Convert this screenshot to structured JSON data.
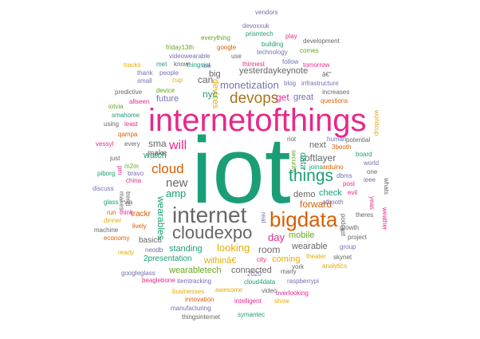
{
  "palette": {
    "teal": "#1b9e77",
    "magenta": "#e7298a",
    "orange": "#d95f02",
    "gold": "#a6761d",
    "gray": "#666666",
    "green": "#66a61e",
    "purple": "#7570b3",
    "yellow": "#e6ab02"
  },
  "words": [
    {
      "text": "iot",
      "color": "teal"
    },
    {
      "text": "internetofthings",
      "color": "magenta"
    },
    {
      "text": "internet",
      "color": "gray"
    },
    {
      "text": "cloudexpo",
      "color": "gray"
    },
    {
      "text": "bigdata",
      "color": "orange"
    },
    {
      "text": "things",
      "color": "teal"
    },
    {
      "text": "devops",
      "color": "gold"
    },
    {
      "text": "cloud",
      "color": "orange"
    },
    {
      "text": "will",
      "color": "magenta"
    },
    {
      "text": "monetization",
      "color": "purple"
    },
    {
      "text": "new",
      "color": "gray"
    },
    {
      "text": "amp",
      "color": "teal"
    },
    {
      "text": "wearables",
      "color": "teal"
    },
    {
      "text": "sma",
      "color": "gray"
    },
    {
      "text": "yesterdaykeynote",
      "color": "gray"
    },
    {
      "text": "can",
      "color": "gray"
    },
    {
      "text": "big",
      "color": "gray"
    },
    {
      "text": "devices",
      "color": "yellow"
    },
    {
      "text": "nyc",
      "color": "teal"
    },
    {
      "text": "get",
      "color": "magenta"
    },
    {
      "text": "great",
      "color": "purple"
    },
    {
      "text": "future",
      "color": "purple"
    },
    {
      "text": "looking",
      "color": "yellow"
    },
    {
      "text": "standing",
      "color": "teal"
    },
    {
      "text": "day",
      "color": "magenta"
    },
    {
      "text": "room",
      "color": "gray"
    },
    {
      "text": "mobile",
      "color": "green"
    },
    {
      "text": "forward",
      "color": "orange"
    },
    {
      "text": "softlayer",
      "color": "gray"
    },
    {
      "text": "next",
      "color": "gray"
    },
    {
      "text": "data",
      "color": "teal"
    },
    {
      "text": "demo",
      "color": "gray"
    },
    {
      "text": "check",
      "color": "teal"
    },
    {
      "text": "watch",
      "color": "teal"
    },
    {
      "text": "coming",
      "color": "yellow"
    },
    {
      "text": "wearable",
      "color": "gray"
    },
    {
      "text": "wearabletech",
      "color": "green"
    },
    {
      "text": "connected",
      "color": "gray"
    },
    {
      "text": "withinâ€",
      "color": "yellow"
    },
    {
      "text": "2presentation",
      "color": "teal"
    },
    {
      "text": "basic6",
      "color": "gray"
    },
    {
      "text": "trackr",
      "color": "orange"
    },
    {
      "text": "make",
      "color": "gray"
    },
    {
      "text": "vendors",
      "color": "purple"
    },
    {
      "text": "devoxxuk",
      "color": "purple"
    },
    {
      "text": "prismtech",
      "color": "teal"
    },
    {
      "text": "play",
      "color": "magenta"
    },
    {
      "text": "everything",
      "color": "green"
    },
    {
      "text": "building",
      "color": "teal"
    },
    {
      "text": "development",
      "color": "gray"
    },
    {
      "text": "friday13th",
      "color": "green"
    },
    {
      "text": "google",
      "color": "orange"
    },
    {
      "text": "technology",
      "color": "purple"
    },
    {
      "text": "comes",
      "color": "green"
    },
    {
      "text": "videowearable",
      "color": "purple"
    },
    {
      "text": "use",
      "color": "gray"
    },
    {
      "text": "follow",
      "color": "purple"
    },
    {
      "text": "tracks",
      "color": "yellow"
    },
    {
      "text": "met",
      "color": "teal"
    },
    {
      "text": "know",
      "color": "gray"
    },
    {
      "text": "thingsiot",
      "color": "teal"
    },
    {
      "text": "thinnest",
      "color": "magenta"
    },
    {
      "text": "tomorrow",
      "color": "magenta"
    },
    {
      "text": "thank",
      "color": "purple"
    },
    {
      "text": "people",
      "color": "purple"
    },
    {
      "text": "ioe",
      "color": "purple"
    },
    {
      "text": "â€\"",
      "color": "gray"
    },
    {
      "text": "small",
      "color": "purple"
    },
    {
      "text": "cup",
      "color": "yellow"
    },
    {
      "text": "blog",
      "color": "purple"
    },
    {
      "text": "infrastructure",
      "color": "purple"
    },
    {
      "text": "increases",
      "color": "gray"
    },
    {
      "text": "predictive",
      "color": "gray"
    },
    {
      "text": "device",
      "color": "green"
    },
    {
      "text": "questions",
      "color": "orange"
    },
    {
      "text": "allseen",
      "color": "magenta"
    },
    {
      "text": "iotvia",
      "color": "green"
    },
    {
      "text": "smahome",
      "color": "teal"
    },
    {
      "text": "using",
      "color": "gray"
    },
    {
      "text": "least",
      "color": "magenta"
    },
    {
      "text": "worldcup",
      "color": "yellow"
    },
    {
      "text": "human",
      "color": "purple"
    },
    {
      "text": "3booth",
      "color": "orange"
    },
    {
      "text": "qampa",
      "color": "orange"
    },
    {
      "text": "riot",
      "color": "gray"
    },
    {
      "text": "security",
      "color": "green"
    },
    {
      "text": "potential",
      "color": "gray"
    },
    {
      "text": "vessyl",
      "color": "magenta"
    },
    {
      "text": "every",
      "color": "gray"
    },
    {
      "text": "board",
      "color": "teal"
    },
    {
      "text": "world",
      "color": "purple"
    },
    {
      "text": "just",
      "color": "gray"
    },
    {
      "text": "m2m",
      "color": "green"
    },
    {
      "text": "arduino",
      "color": "orange"
    },
    {
      "text": "one",
      "color": "gray"
    },
    {
      "text": "piborg",
      "color": "teal"
    },
    {
      "text": "bravo",
      "color": "purple"
    },
    {
      "text": "joins",
      "color": "teal"
    },
    {
      "text": "dbms",
      "color": "purple"
    },
    {
      "text": "ieee",
      "color": "purple"
    },
    {
      "text": "china",
      "color": "magenta"
    },
    {
      "text": "post",
      "color": "magenta"
    },
    {
      "text": "evil",
      "color": "magenta"
    },
    {
      "text": "whats",
      "color": "gray"
    },
    {
      "text": "discuss",
      "color": "purple"
    },
    {
      "text": "atbooth",
      "color": "purple"
    },
    {
      "text": "glass",
      "color": "teal"
    },
    {
      "text": "via",
      "color": "gray"
    },
    {
      "text": "pm",
      "color": "magenta"
    },
    {
      "text": "makes",
      "color": "gray"
    },
    {
      "text": "trend",
      "color": "gray"
    },
    {
      "text": "yeas",
      "color": "magenta"
    },
    {
      "text": "run",
      "color": "orange"
    },
    {
      "text": "think",
      "color": "magenta"
    },
    {
      "text": "theres",
      "color": "gray"
    },
    {
      "text": "weather",
      "color": "magenta"
    },
    {
      "text": "dinner",
      "color": "yellow"
    },
    {
      "text": "podcast",
      "color": "gray"
    },
    {
      "text": "machine",
      "color": "gray"
    },
    {
      "text": "lively",
      "color": "orange"
    },
    {
      "text": "project",
      "color": "gray"
    },
    {
      "text": "economy",
      "color": "orange"
    },
    {
      "text": "group",
      "color": "purple"
    },
    {
      "text": "ready",
      "color": "yellow"
    },
    {
      "text": "neodb",
      "color": "purple"
    },
    {
      "text": "real",
      "color": "purple"
    },
    {
      "text": "theater",
      "color": "yellow"
    },
    {
      "text": "skynet",
      "color": "gray"
    },
    {
      "text": "city",
      "color": "magenta"
    },
    {
      "text": "analytics",
      "color": "yellow"
    },
    {
      "text": "york",
      "color": "gray"
    },
    {
      "text": "googleglass",
      "color": "purple"
    },
    {
      "text": "2020",
      "color": "purple"
    },
    {
      "text": "many",
      "color": "gray"
    },
    {
      "text": "beaglebone",
      "color": "magenta"
    },
    {
      "text": "itemtracking",
      "color": "purple"
    },
    {
      "text": "cloud4data",
      "color": "teal"
    },
    {
      "text": "raspberrypi",
      "color": "purple"
    },
    {
      "text": "businesses",
      "color": "yellow"
    },
    {
      "text": "awesome",
      "color": "yellow"
    },
    {
      "text": "video",
      "color": "gray"
    },
    {
      "text": "overlooking",
      "color": "magenta"
    },
    {
      "text": "innovation",
      "color": "orange"
    },
    {
      "text": "intelligent",
      "color": "magenta"
    },
    {
      "text": "show",
      "color": "yellow"
    },
    {
      "text": "manufacturing",
      "color": "purple"
    },
    {
      "text": "thingsinternet",
      "color": "gray"
    },
    {
      "text": "symantec",
      "color": "teal"
    },
    {
      "text": "growth",
      "color": "gray"
    }
  ]
}
